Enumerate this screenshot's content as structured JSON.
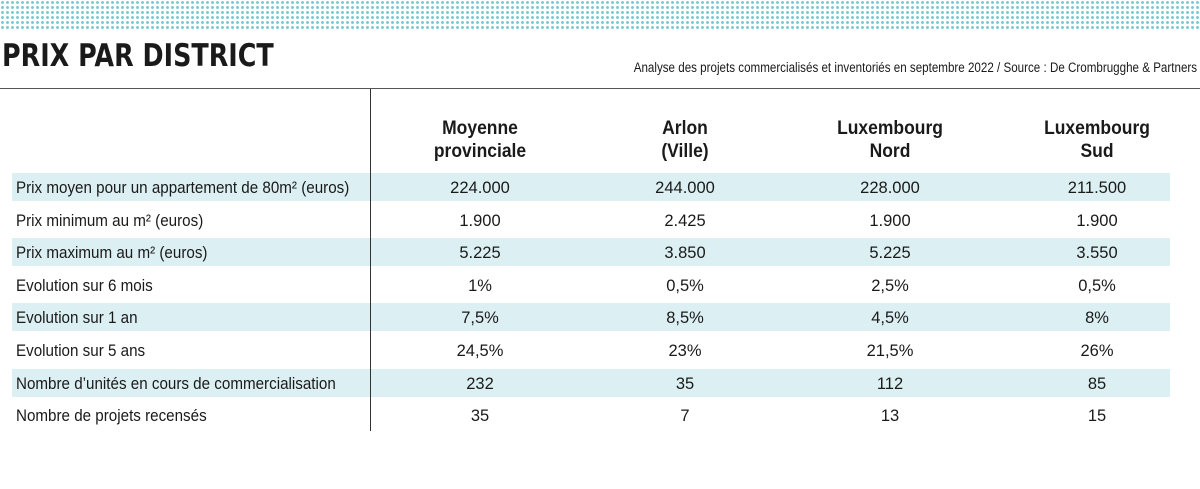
{
  "title": "PRIX PAR DISTRICT",
  "subtitle": "Analyse des projets commercialisés et inventoriés en septembre 2022 / Source : De Crombrugghe & Partners",
  "chart_data": {
    "type": "table",
    "columns": [
      {
        "line1": "Moyenne",
        "line2": "provinciale"
      },
      {
        "line1": "Arlon",
        "line2": "(Ville)"
      },
      {
        "line1": "Luxembourg",
        "line2": "Nord"
      },
      {
        "line1": "Luxembourg",
        "line2": "Sud"
      }
    ],
    "rows": [
      {
        "label": "Prix moyen pour un appartement de 80m² (euros)",
        "values": [
          "224.000",
          "244.000",
          "228.000",
          "211.500"
        ]
      },
      {
        "label": "Prix minimum au m² (euros)",
        "values": [
          "1.900",
          "2.425",
          "1.900",
          "1.900"
        ]
      },
      {
        "label": "Prix maximum au m² (euros)",
        "values": [
          "5.225",
          "3.850",
          "5.225",
          "3.550"
        ]
      },
      {
        "label": "Evolution sur 6 mois",
        "values": [
          "1%",
          "0,5%",
          "2,5%",
          "0,5%"
        ]
      },
      {
        "label": "Evolution sur 1 an",
        "values": [
          "7,5%",
          "8,5%",
          "4,5%",
          "8%"
        ]
      },
      {
        "label": "Evolution sur 5 ans",
        "values": [
          "24,5%",
          "23%",
          "21,5%",
          "26%"
        ]
      },
      {
        "label": "Nombre d’unités en cours de commercialisation",
        "values": [
          "232",
          "35",
          "112",
          "85"
        ]
      },
      {
        "label": "Nombre de projets recensés",
        "values": [
          "35",
          "7",
          "13",
          "15"
        ]
      }
    ]
  },
  "colors": {
    "band": "#dcf0f3",
    "dots": "#7fcbd2",
    "text": "#1a1a1a"
  }
}
